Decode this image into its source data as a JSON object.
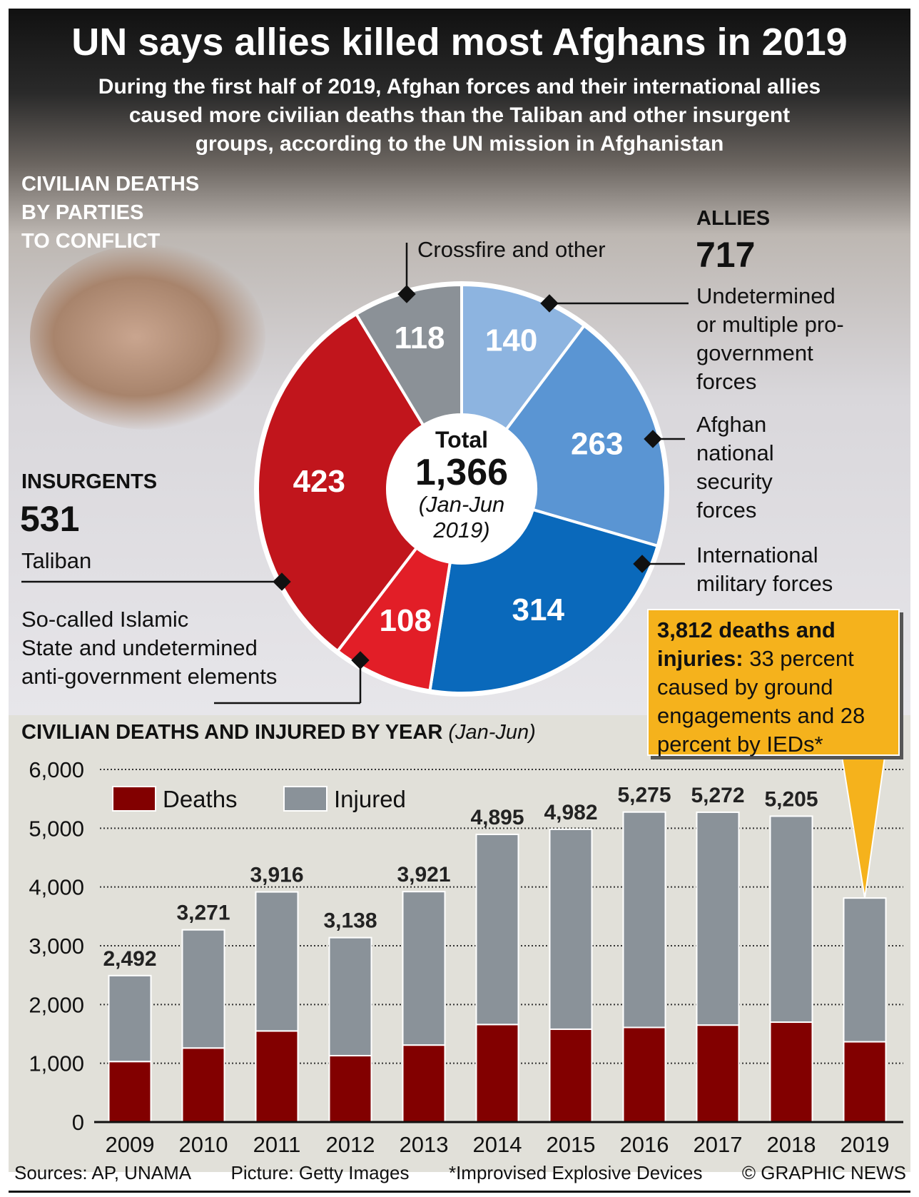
{
  "header": {
    "title": "UN says allies killed most Afghans in 2019",
    "subtitle": [
      "During the first half of 2019, Afghan forces and their international allies",
      "caused more civilian deaths than the Taliban and other insurgent",
      "groups, according to the UN mission in Afghanistan"
    ]
  },
  "donut": {
    "heading": [
      "Civilian Deaths",
      "by Parties",
      "to Conflict"
    ],
    "center": {
      "label": "Total",
      "value": "1,366",
      "period": [
        "(Jan-Jun",
        "2019)"
      ]
    },
    "groups": {
      "insurgents": {
        "label": "Insurgents",
        "total": "531"
      },
      "allies": {
        "label": "Allies",
        "total": "717"
      }
    },
    "segment_labels": {
      "crossfire": "Crossfire and other",
      "undetermined": [
        "Undetermined",
        "or multiple pro-",
        "government",
        "forces"
      ],
      "ansf": [
        "Afghan",
        "national",
        "security",
        "forces"
      ],
      "international": [
        "International",
        "military forces"
      ],
      "taliban": "Taliban",
      "is": [
        "So-called Islamic",
        "State and undetermined",
        "anti-government elements"
      ]
    }
  },
  "callout": {
    "bold": "3,812 deaths and injuries:",
    "text": " 33 percent caused by ground engagements and 28 percent by IEDs*"
  },
  "footer": {
    "sources": "Sources: AP, UNAMA",
    "picture": "Picture: Getty Images",
    "note": "*Improvised Explosive Devices",
    "credit": "© GRAPHIC NEWS"
  },
  "chart_data": [
    {
      "type": "pie",
      "title": "Civilian deaths by parties to conflict (Jan-Jun 2019)",
      "total": 1366,
      "slices": [
        {
          "name": "Crossfire and other (undetermined or multiple pro-government forces)",
          "value": 140,
          "color": "#8db4e0"
        },
        {
          "name": "Afghan national security forces",
          "value": 263,
          "color": "#5a95d3"
        },
        {
          "name": "International military forces",
          "value": 314,
          "color": "#0a69bb"
        },
        {
          "name": "So-called Islamic State and undetermined anti-government elements",
          "value": 108,
          "color": "#e21e27"
        },
        {
          "name": "Taliban",
          "value": 423,
          "color": "#c1151c"
        },
        {
          "name": "Crossfire and other",
          "value": 118,
          "color": "#8b9197"
        }
      ]
    },
    {
      "type": "bar",
      "stacked": true,
      "title": "Civilian Deaths and Injured by Year",
      "title_note": "(Jan-Jun)",
      "categories": [
        "2009",
        "2010",
        "2011",
        "2012",
        "2013",
        "2014",
        "2015",
        "2016",
        "2017",
        "2018",
        "2019"
      ],
      "series": [
        {
          "name": "Deaths",
          "color": "#820000",
          "values": [
            1030,
            1260,
            1550,
            1130,
            1310,
            1660,
            1580,
            1610,
            1650,
            1700,
            1366
          ]
        },
        {
          "name": "Injured",
          "color": "#8a9299",
          "values": [
            1462,
            2011,
            2366,
            2008,
            2611,
            3235,
            3402,
            3665,
            3622,
            3505,
            2446
          ]
        }
      ],
      "totals": [
        "2,492",
        "3,271",
        "3,916",
        "3,138",
        "3,921",
        "4,895",
        "4,982",
        "5,275",
        "5,272",
        "5,205",
        "3,812"
      ],
      "total_values": [
        2492,
        3271,
        3916,
        3138,
        3921,
        4895,
        4982,
        5275,
        5272,
        5205,
        3812
      ],
      "ylim": [
        0,
        6000
      ],
      "yticks": [
        "0",
        "1,000",
        "2,000",
        "3,000",
        "4,000",
        "5,000",
        "6,000"
      ],
      "grid": true,
      "legend": "top-left"
    }
  ]
}
